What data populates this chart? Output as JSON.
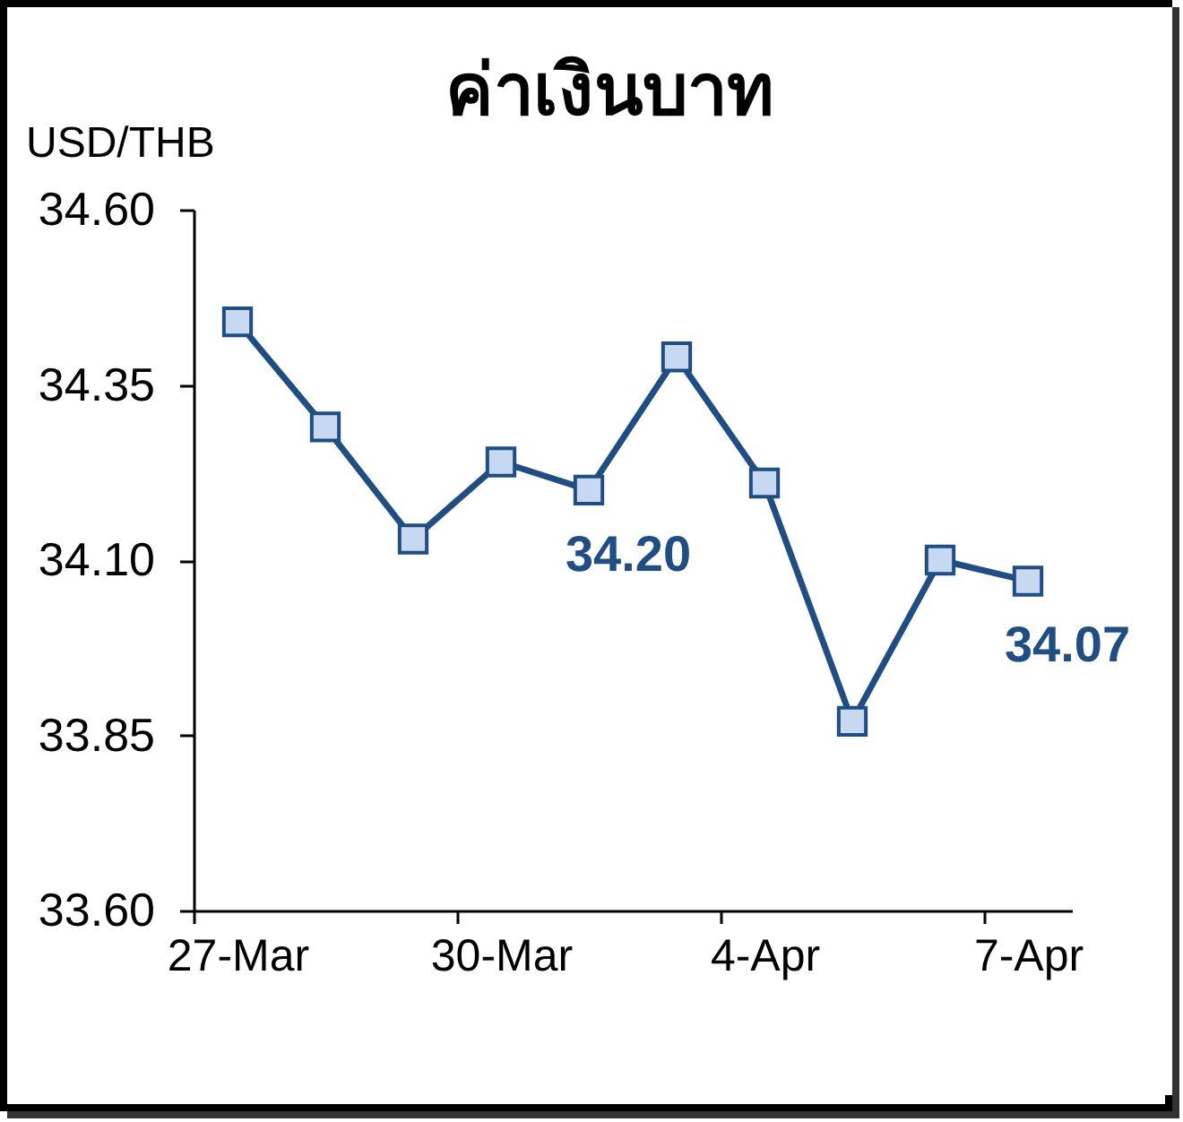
{
  "chart_data": {
    "type": "line",
    "title": "ค่าเงินบาท",
    "ylabel": "USD/THB",
    "categories": [
      "27-Mar",
      null,
      null,
      "30-Mar",
      null,
      null,
      "4-Apr",
      null,
      null,
      "7-Apr"
    ],
    "series": [
      {
        "color": "#1f4e85",
        "values": [
          34.44,
          34.29,
          34.13,
          34.24,
          34.2,
          34.39,
          34.21,
          33.87,
          34.1,
          34.07
        ],
        "value_labels": [
          null,
          null,
          null,
          null,
          "34.20",
          null,
          null,
          null,
          null,
          "34.07"
        ]
      }
    ],
    "ylim": [
      33.6,
      34.6
    ],
    "yticks": [
      {
        "value": 33.6,
        "label": "33.60"
      },
      33.85,
      {
        "value": 34.1,
        "label": "34.10"
      },
      34.35,
      {
        "value": 34.6,
        "label": "34.60"
      }
    ],
    "marker": "square"
  }
}
